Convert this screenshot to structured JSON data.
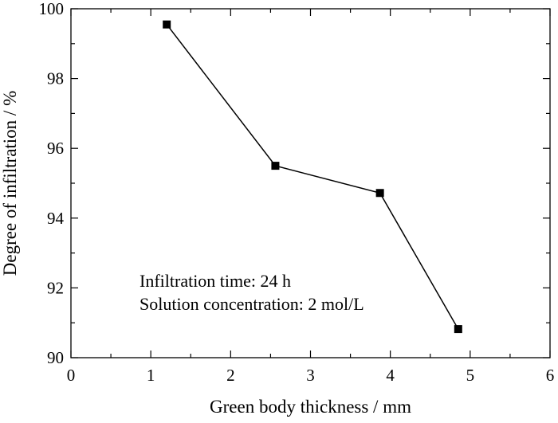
{
  "chart_data": {
    "type": "line",
    "xlabel": "Green body thickness / mm",
    "ylabel": "Degree of infiltration / %",
    "xlim": [
      0,
      6
    ],
    "ylim": [
      90,
      100
    ],
    "x_ticks": [
      0,
      1,
      2,
      3,
      4,
      5,
      6
    ],
    "y_ticks": [
      90,
      92,
      94,
      96,
      98,
      100
    ],
    "grid": false,
    "series": [
      {
        "x": [
          1.2,
          2.56,
          3.87,
          4.85
        ],
        "y": [
          99.55,
          95.5,
          94.72,
          90.82
        ],
        "marker": "square",
        "color": "#000000"
      }
    ],
    "annotations": [
      "Infiltration time: 24 h",
      "Solution concentration: 2 mol/L"
    ]
  }
}
